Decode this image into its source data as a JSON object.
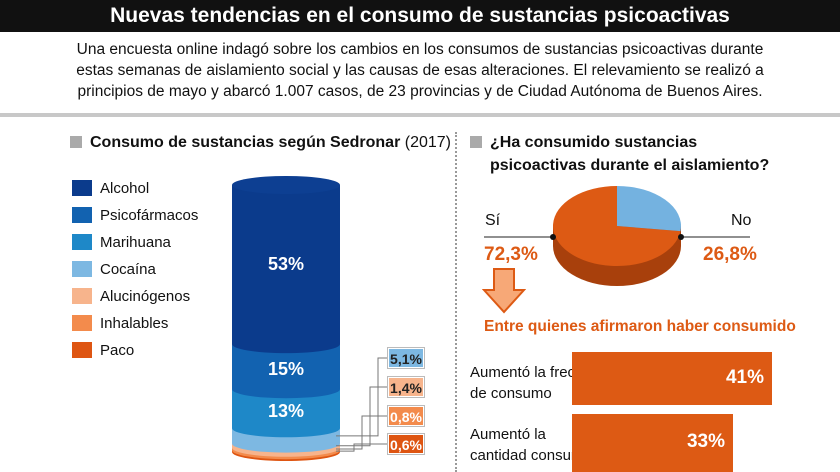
{
  "title": "Nuevas tendencias en el consumo de sustancias psicoactivas",
  "intro": [
    "Una encuesta online indagó sobre los cambios en los consumos de sustancias psicoactivas durante",
    "estas semanas de aislamiento social y las causas de esas alteraciones. El relevamiento se realizó a",
    "principios de mayo y abarcó 1.007 casos, de 23 provincias y de Ciudad Autónoma de Buenos Aires."
  ],
  "left": {
    "heading": "Consumo de sustancias según Sedronar",
    "heading_year": "(2017)"
  },
  "right": {
    "heading1": "¿Ha consumido sustancias",
    "heading2": "psicoactivas durante el aislamiento?",
    "subheading": "Entre quienes afirmaron haber consumido"
  },
  "chart_data": [
    {
      "type": "bar",
      "stacked": true,
      "title": "Consumo de sustancias según Sedronar (2017)",
      "legend_placement": "left",
      "categories": [
        "Alcohol",
        "Psicofármacos",
        "Marihuana",
        "Cocaína",
        "Alucinógenos",
        "Inhalables",
        "Paco"
      ],
      "values": [
        53,
        15,
        13,
        5.1,
        1.4,
        0.8,
        0.6
      ],
      "labels": [
        "53%",
        "15%",
        "13%",
        "5,1%",
        "1,4%",
        "0,8%",
        "0,6%"
      ],
      "colors": [
        "#0b3b8c",
        "#1262b0",
        "#1e88c8",
        "#7db8e2",
        "#f7b48c",
        "#f38b4c",
        "#de5512"
      ]
    },
    {
      "type": "pie",
      "title": "¿Ha consumido sustancias psicoactivas durante el aislamiento?",
      "categories": [
        "Sí",
        "No"
      ],
      "values": [
        72.3,
        26.8
      ],
      "labels": [
        "72,3%",
        "26,8%"
      ],
      "colors": [
        "#dd5a14",
        "#74b2e0"
      ]
    },
    {
      "type": "bar",
      "orientation": "horizontal",
      "title": "Entre quienes afirmaron haber consumido",
      "categories": [
        [
          "Aumentó la frecuencia",
          "de consumo"
        ],
        [
          "Aumentó la",
          "cantidad consumida"
        ]
      ],
      "values": [
        41,
        33
      ],
      "labels": [
        "41%",
        "33%"
      ],
      "color": "#dd5a14"
    }
  ]
}
